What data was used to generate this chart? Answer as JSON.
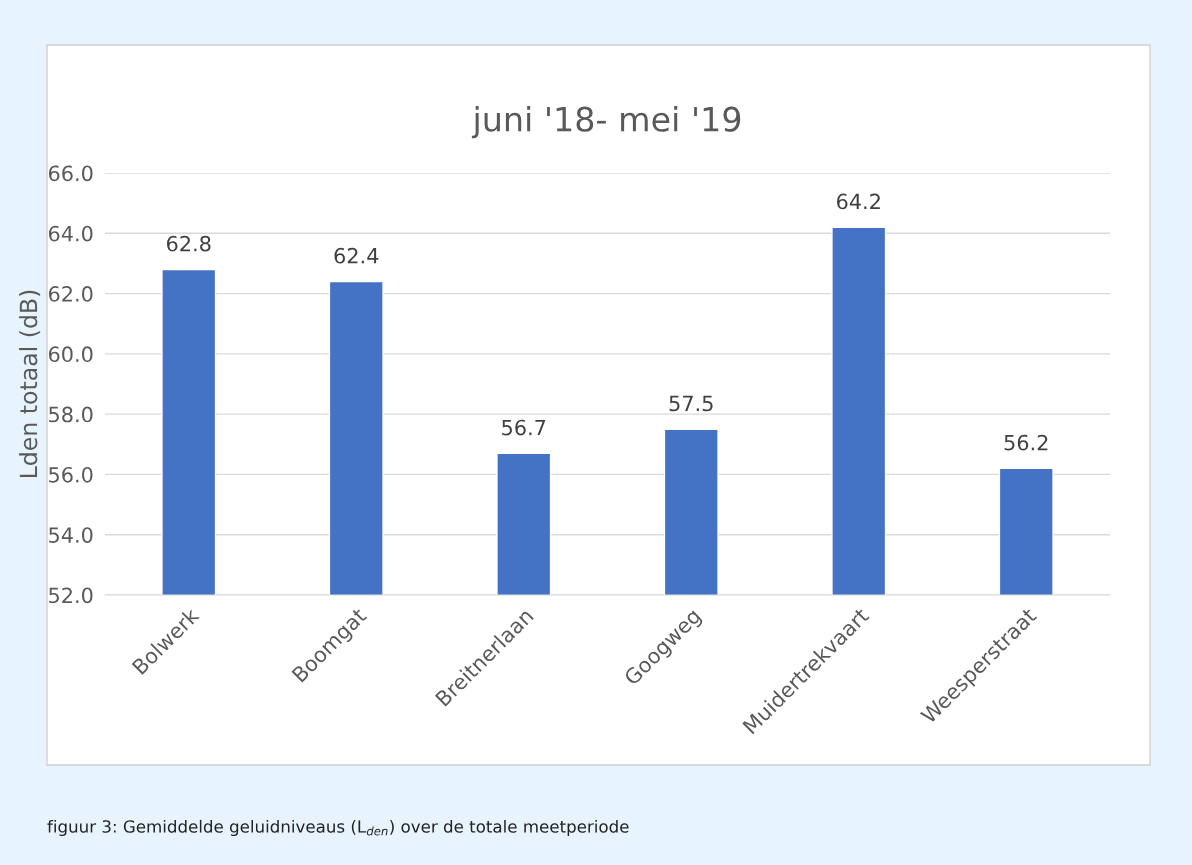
{
  "chart_data": {
    "type": "bar",
    "title": "juni '18- mei '19",
    "ylabel": "Lden totaal (dB)",
    "categories": [
      "Bolwerk",
      "Boomgat",
      "Breitnerlaan",
      "Googweg",
      "Muidertrekvaart",
      "Weesperstraat"
    ],
    "values": [
      62.8,
      62.4,
      56.7,
      57.5,
      64.2,
      56.2
    ],
    "color": "#4472c4",
    "ylim": [
      52,
      66
    ],
    "yticks": [
      {
        "value": 52,
        "label": "52.0"
      },
      {
        "value": 54,
        "label": "54.0"
      },
      {
        "value": 56,
        "label": "56.0"
      },
      {
        "value": 58,
        "label": "58.0"
      },
      {
        "value": 60,
        "label": "60.0"
      },
      {
        "value": 62,
        "label": "62.0"
      },
      {
        "value": 64,
        "label": "64.0"
      },
      {
        "value": 66,
        "label": "66.0"
      }
    ],
    "grid": "y",
    "data_labels": true,
    "annotations": [
      "figuur 3: Gemiddelde geluidniveaus (L$_{den}$) over de totale meetperiode"
    ]
  }
}
